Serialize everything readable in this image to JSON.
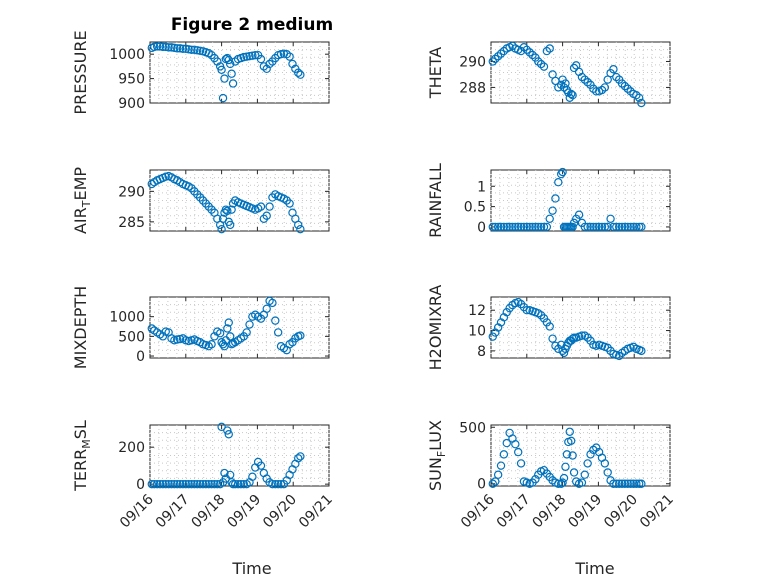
{
  "figure": {
    "title": "Figure 2 medium",
    "xlabel": "Time",
    "xticks": [
      "09/16",
      "09/17",
      "09/18",
      "09/19",
      "09/20",
      "09/21"
    ],
    "marker_color": "#0072BD"
  },
  "chart_data": [
    {
      "type": "scatter",
      "ylabel": "PRESSURE",
      "ylim": [
        900,
        1025
      ],
      "yticks": [
        900,
        950,
        1000
      ],
      "ytick_labels": [
        "900",
        "950",
        "1000"
      ],
      "x_days": [
        0.05,
        0.12,
        0.2,
        0.28,
        0.36,
        0.44,
        0.52,
        0.6,
        0.68,
        0.76,
        0.84,
        0.92,
        1.0,
        1.08,
        1.16,
        1.24,
        1.32,
        1.4,
        1.48,
        1.56,
        1.64,
        1.72,
        1.8,
        1.88,
        1.96,
        2.0,
        2.04,
        2.08,
        2.12,
        2.16,
        2.2,
        2.24,
        2.28,
        2.32,
        2.38,
        2.46,
        2.54,
        2.62,
        2.7,
        2.78,
        2.86,
        2.94,
        3.02,
        3.1,
        3.18,
        3.26,
        3.34,
        3.42,
        3.5,
        3.58,
        3.66,
        3.74,
        3.82,
        3.9,
        3.98,
        4.06,
        4.14,
        4.2
      ],
      "values": [
        1013,
        1015,
        1016,
        1016,
        1015,
        1015,
        1014,
        1014,
        1013,
        1012,
        1012,
        1011,
        1011,
        1010,
        1009,
        1009,
        1008,
        1007,
        1006,
        1004,
        1002,
        998,
        992,
        985,
        975,
        968,
        910,
        950,
        990,
        992,
        988,
        980,
        960,
        940,
        985,
        990,
        992,
        994,
        995,
        996,
        997,
        998,
        998,
        990,
        975,
        970,
        980,
        985,
        992,
        998,
        1000,
        1001,
        1000,
        995,
        980,
        970,
        962,
        958
      ]
    },
    {
      "type": "scatter",
      "ylabel": "THETA",
      "ylim": [
        286.8,
        291.5
      ],
      "yticks": [
        288,
        290
      ],
      "ytick_labels": [
        "288",
        "290"
      ],
      "x_days": [
        0.05,
        0.12,
        0.2,
        0.28,
        0.36,
        0.44,
        0.52,
        0.6,
        0.68,
        0.76,
        0.84,
        0.92,
        1.0,
        1.08,
        1.16,
        1.24,
        1.32,
        1.4,
        1.48,
        1.56,
        1.64,
        1.72,
        1.8,
        1.88,
        1.96,
        2.0,
        2.04,
        2.08,
        2.12,
        2.16,
        2.2,
        2.24,
        2.28,
        2.32,
        2.38,
        2.46,
        2.54,
        2.62,
        2.7,
        2.78,
        2.86,
        2.94,
        3.02,
        3.1,
        3.18,
        3.26,
        3.34,
        3.42,
        3.5,
        3.58,
        3.66,
        3.74,
        3.82,
        3.9,
        3.98,
        4.06,
        4.14,
        4.2
      ],
      "values": [
        290.0,
        290.2,
        290.4,
        290.6,
        290.8,
        291.0,
        291.1,
        291.2,
        291.0,
        290.9,
        290.8,
        291.1,
        290.9,
        290.7,
        290.5,
        290.3,
        290.0,
        289.8,
        289.6,
        290.8,
        291.0,
        289.0,
        288.5,
        288.0,
        288.2,
        288.6,
        288.0,
        288.3,
        287.8,
        287.6,
        287.2,
        287.5,
        287.4,
        289.5,
        289.7,
        289.2,
        288.8,
        288.6,
        288.4,
        288.2,
        287.9,
        287.7,
        287.7,
        287.8,
        288.0,
        288.6,
        289.1,
        289.4,
        288.8,
        288.6,
        288.3,
        288.1,
        287.9,
        287.7,
        287.5,
        287.4,
        287.2,
        286.8
      ]
    },
    {
      "type": "scatter",
      "ylabel": "AIR_TEMP",
      "ylim": [
        283.5,
        293.5
      ],
      "yticks": [
        285,
        290
      ],
      "ytick_labels": [
        "285",
        "290"
      ],
      "x_days": [
        0.05,
        0.12,
        0.2,
        0.28,
        0.36,
        0.44,
        0.52,
        0.6,
        0.68,
        0.76,
        0.84,
        0.92,
        1.0,
        1.08,
        1.16,
        1.24,
        1.32,
        1.4,
        1.48,
        1.56,
        1.64,
        1.72,
        1.8,
        1.88,
        1.96,
        2.0,
        2.04,
        2.08,
        2.12,
        2.16,
        2.2,
        2.24,
        2.28,
        2.32,
        2.38,
        2.46,
        2.54,
        2.62,
        2.7,
        2.78,
        2.86,
        2.94,
        3.02,
        3.1,
        3.18,
        3.26,
        3.34,
        3.42,
        3.5,
        3.58,
        3.66,
        3.74,
        3.82,
        3.9,
        3.98,
        4.06,
        4.14,
        4.2
      ],
      "values": [
        291.2,
        291.5,
        291.8,
        292.0,
        292.2,
        292.4,
        292.5,
        292.3,
        292.0,
        291.8,
        291.5,
        291.2,
        291.0,
        290.8,
        290.5,
        290.0,
        289.5,
        289.0,
        288.5,
        288.0,
        287.5,
        287.0,
        286.5,
        285.5,
        284.5,
        283.8,
        285.5,
        286.5,
        287.0,
        286.8,
        285.0,
        284.5,
        287.0,
        288.0,
        288.5,
        288.2,
        288.0,
        287.8,
        287.6,
        287.4,
        287.2,
        287.0,
        287.2,
        287.5,
        285.5,
        286.0,
        287.5,
        289.0,
        289.5,
        289.2,
        289.0,
        288.8,
        288.5,
        288.0,
        286.5,
        285.5,
        284.5,
        283.8
      ]
    },
    {
      "type": "scatter",
      "ylabel": "RAINFALL",
      "ylim": [
        -0.1,
        1.4
      ],
      "yticks": [
        0,
        0.5,
        1
      ],
      "ytick_labels": [
        "0",
        "0.5",
        "1"
      ],
      "x_days": [
        0.05,
        0.12,
        0.2,
        0.28,
        0.36,
        0.44,
        0.52,
        0.6,
        0.68,
        0.76,
        0.84,
        0.92,
        1.0,
        1.08,
        1.16,
        1.24,
        1.32,
        1.4,
        1.48,
        1.56,
        1.64,
        1.72,
        1.8,
        1.88,
        1.96,
        2.0,
        2.04,
        2.08,
        2.12,
        2.16,
        2.2,
        2.24,
        2.28,
        2.32,
        2.38,
        2.46,
        2.54,
        2.62,
        2.7,
        2.78,
        2.86,
        2.94,
        3.02,
        3.1,
        3.18,
        3.26,
        3.34,
        3.42,
        3.5,
        3.58,
        3.66,
        3.74,
        3.82,
        3.9,
        3.98,
        4.06,
        4.14,
        4.2
      ],
      "values": [
        0,
        0,
        0,
        0,
        0,
        0,
        0,
        0,
        0,
        0,
        0,
        0,
        0,
        0,
        0,
        0,
        0,
        0,
        0,
        0,
        0.2,
        0.4,
        0.7,
        1.1,
        1.3,
        1.35,
        0,
        0,
        0,
        0,
        0,
        0,
        0,
        0.1,
        0.2,
        0.3,
        0.1,
        0,
        0,
        0,
        0,
        0,
        0,
        0,
        0,
        0,
        0.2,
        0,
        0,
        0,
        0,
        0,
        0,
        0,
        0,
        0,
        0,
        0
      ]
    },
    {
      "type": "scatter",
      "ylabel": "MIXDEPTH",
      "ylim": [
        -50,
        1500
      ],
      "yticks": [
        0,
        500,
        1000
      ],
      "ytick_labels": [
        "0",
        "500",
        "1000"
      ],
      "x_days": [
        0.05,
        0.12,
        0.2,
        0.28,
        0.36,
        0.44,
        0.52,
        0.6,
        0.68,
        0.76,
        0.84,
        0.92,
        1.0,
        1.08,
        1.16,
        1.24,
        1.32,
        1.4,
        1.48,
        1.56,
        1.64,
        1.72,
        1.8,
        1.88,
        1.96,
        2.0,
        2.04,
        2.08,
        2.12,
        2.16,
        2.2,
        2.24,
        2.28,
        2.32,
        2.38,
        2.46,
        2.54,
        2.62,
        2.7,
        2.78,
        2.86,
        2.94,
        3.02,
        3.1,
        3.18,
        3.26,
        3.34,
        3.42,
        3.5,
        3.58,
        3.66,
        3.74,
        3.82,
        3.9,
        3.98,
        4.06,
        4.14,
        4.2
      ],
      "values": [
        700,
        650,
        600,
        550,
        500,
        620,
        600,
        450,
        400,
        420,
        430,
        450,
        400,
        380,
        400,
        420,
        380,
        350,
        300,
        280,
        250,
        300,
        500,
        620,
        580,
        350,
        300,
        250,
        400,
        700,
        850,
        500,
        300,
        320,
        350,
        400,
        450,
        500,
        600,
        800,
        1000,
        1050,
        1000,
        950,
        1050,
        1200,
        1400,
        1350,
        900,
        600,
        250,
        200,
        150,
        300,
        350,
        450,
        500,
        520
      ]
    },
    {
      "type": "scatter",
      "ylabel": "H2OMIXRA",
      "ylim": [
        7.3,
        13.3
      ],
      "yticks": [
        8,
        10,
        12
      ],
      "ytick_labels": [
        "8",
        "10",
        "12"
      ],
      "x_days": [
        0.05,
        0.12,
        0.2,
        0.28,
        0.36,
        0.44,
        0.52,
        0.6,
        0.68,
        0.76,
        0.84,
        0.92,
        1.0,
        1.08,
        1.16,
        1.24,
        1.32,
        1.4,
        1.48,
        1.56,
        1.64,
        1.72,
        1.8,
        1.88,
        1.96,
        2.0,
        2.04,
        2.08,
        2.12,
        2.16,
        2.2,
        2.24,
        2.28,
        2.32,
        2.38,
        2.46,
        2.54,
        2.62,
        2.7,
        2.78,
        2.86,
        2.94,
        3.02,
        3.1,
        3.18,
        3.26,
        3.34,
        3.42,
        3.5,
        3.58,
        3.66,
        3.74,
        3.82,
        3.9,
        3.98,
        4.06,
        4.14,
        4.2
      ],
      "values": [
        9.4,
        9.8,
        10.3,
        10.8,
        11.3,
        11.8,
        12.2,
        12.5,
        12.7,
        12.8,
        12.6,
        12.3,
        12.0,
        12.0,
        11.9,
        11.8,
        11.7,
        11.5,
        11.2,
        10.8,
        10.4,
        9.2,
        8.5,
        8.2,
        8.6,
        8.0,
        7.8,
        8.2,
        8.5,
        8.8,
        9.0,
        9.0,
        9.2,
        9.3,
        9.3,
        9.4,
        9.5,
        9.5,
        9.3,
        9.0,
        8.6,
        8.5,
        8.6,
        8.5,
        8.4,
        8.3,
        8.0,
        7.7,
        7.6,
        7.5,
        7.8,
        8.0,
        8.2,
        8.3,
        8.4,
        8.2,
        8.1,
        8.0
      ]
    },
    {
      "type": "scatter",
      "ylabel": "TERR_MSL",
      "ylim": [
        -10,
        320
      ],
      "yticks": [
        0,
        200
      ],
      "ytick_labels": [
        "0",
        "200"
      ],
      "x_days": [
        0.05,
        0.12,
        0.2,
        0.28,
        0.36,
        0.44,
        0.52,
        0.6,
        0.68,
        0.76,
        0.84,
        0.92,
        1.0,
        1.08,
        1.16,
        1.24,
        1.32,
        1.4,
        1.48,
        1.56,
        1.64,
        1.72,
        1.8,
        1.88,
        1.96,
        2.0,
        2.04,
        2.08,
        2.12,
        2.16,
        2.2,
        2.24,
        2.28,
        2.32,
        2.38,
        2.46,
        2.54,
        2.62,
        2.7,
        2.78,
        2.86,
        2.94,
        3.02,
        3.1,
        3.18,
        3.26,
        3.34,
        3.42,
        3.5,
        3.58,
        3.66,
        3.74,
        3.82,
        3.9,
        3.98,
        4.06,
        4.14,
        4.2
      ],
      "values": [
        0,
        0,
        0,
        0,
        0,
        0,
        0,
        0,
        0,
        0,
        0,
        0,
        0,
        0,
        0,
        0,
        0,
        0,
        0,
        0,
        0,
        0,
        0,
        0,
        0,
        310,
        10,
        60,
        30,
        290,
        270,
        50,
        10,
        0,
        0,
        0,
        0,
        0,
        0,
        10,
        40,
        90,
        120,
        100,
        60,
        30,
        10,
        0,
        0,
        0,
        0,
        0,
        20,
        50,
        80,
        110,
        140,
        150
      ]
    },
    {
      "type": "scatter",
      "ylabel": "SUN_FLUX",
      "ylim": [
        -20,
        520
      ],
      "yticks": [
        0,
        500
      ],
      "ytick_labels": [
        "0",
        "500"
      ],
      "x_days": [
        0.05,
        0.12,
        0.2,
        0.28,
        0.36,
        0.44,
        0.52,
        0.6,
        0.68,
        0.76,
        0.84,
        0.92,
        1.0,
        1.08,
        1.16,
        1.24,
        1.32,
        1.4,
        1.48,
        1.56,
        1.64,
        1.72,
        1.8,
        1.88,
        1.96,
        2.0,
        2.04,
        2.08,
        2.12,
        2.16,
        2.2,
        2.24,
        2.28,
        2.32,
        2.38,
        2.46,
        2.54,
        2.62,
        2.7,
        2.78,
        2.86,
        2.94,
        3.02,
        3.1,
        3.18,
        3.26,
        3.34,
        3.42,
        3.5,
        3.58,
        3.66,
        3.74,
        3.82,
        3.9,
        3.98,
        4.06,
        4.14,
        4.2
      ],
      "values": [
        0,
        20,
        80,
        160,
        260,
        360,
        450,
        400,
        350,
        280,
        180,
        20,
        10,
        0,
        10,
        40,
        80,
        110,
        120,
        90,
        60,
        30,
        10,
        0,
        0,
        10,
        50,
        150,
        260,
        370,
        460,
        380,
        250,
        100,
        20,
        0,
        10,
        80,
        180,
        260,
        300,
        320,
        280,
        230,
        180,
        100,
        30,
        0,
        0,
        0,
        0,
        0,
        0,
        0,
        0,
        0,
        0,
        0
      ]
    }
  ]
}
